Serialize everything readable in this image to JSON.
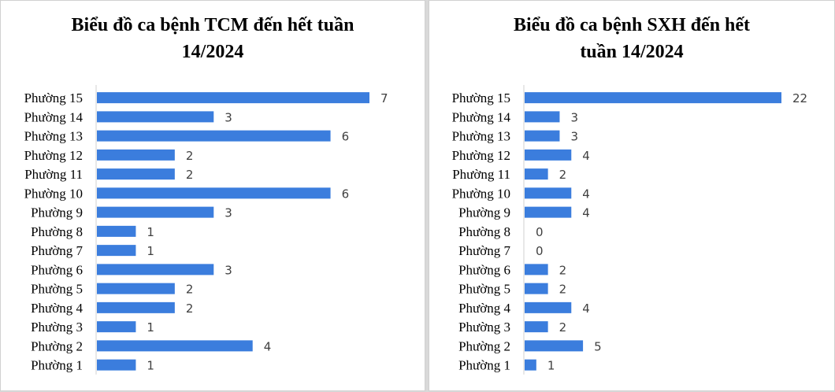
{
  "chart_data": [
    {
      "type": "bar",
      "orientation": "horizontal",
      "title": "Biểu đồ ca bệnh TCM đến hết tuần 14/2024",
      "title_lines": [
        "Biểu đồ ca bệnh TCM đến hết tuần",
        "14/2024"
      ],
      "categories": [
        "Phường 15",
        "Phường 14",
        "Phường 13",
        "Phường 12",
        "Phường 11",
        "Phường 10",
        "Phường 9",
        "Phường 8",
        "Phường 7",
        "Phường 6",
        "Phường 5",
        "Phường 4",
        "Phường 3",
        "Phường 2",
        "Phường 1"
      ],
      "values": [
        7,
        3,
        6,
        2,
        2,
        6,
        3,
        1,
        1,
        3,
        2,
        2,
        1,
        4,
        1
      ],
      "xlabel": "",
      "ylabel": "",
      "xlim": [
        0,
        7
      ],
      "data_labels": true,
      "grid": false,
      "bar_color": "#3b7ddd"
    },
    {
      "type": "bar",
      "orientation": "horizontal",
      "title": "Biểu đồ ca bệnh SXH đến hết tuần 14/2024",
      "title_lines": [
        "Biểu đồ ca bệnh SXH đến hết",
        "tuần 14/2024"
      ],
      "categories": [
        "Phường 15",
        "Phường 14",
        "Phường 13",
        "Phường 12",
        "Phường 11",
        "Phường 10",
        "Phường 9",
        "Phường 8",
        "Phường 7",
        "Phường 6",
        "Phường 5",
        "Phường 4",
        "Phường 3",
        "Phường 2",
        "Phường 1"
      ],
      "values": [
        22,
        3,
        3,
        4,
        2,
        4,
        4,
        0,
        0,
        2,
        2,
        4,
        2,
        5,
        1
      ],
      "xlabel": "",
      "ylabel": "",
      "xlim": [
        0,
        22
      ],
      "data_labels": true,
      "grid": false,
      "bar_color": "#3b7ddd"
    }
  ]
}
